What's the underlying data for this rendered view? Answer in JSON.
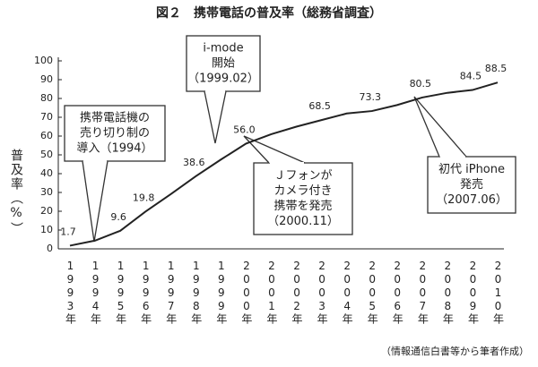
{
  "chart_data": {
    "type": "line",
    "title": "図２　携帯電話の普及率（総務省調査）",
    "y_label": "普及率（%）",
    "source": "（情報通信白書等から筆者作成）",
    "categories": [
      "1993年",
      "1994年",
      "1995年",
      "1996年",
      "1997年",
      "1998年",
      "1999年",
      "2000年",
      "2001年",
      "2002年",
      "2003年",
      "2004年",
      "2005年",
      "2006年",
      "2007年",
      "2008年",
      "2009年",
      "2010年"
    ],
    "series": [
      {
        "name": "普及率",
        "color": "#222222",
        "values": [
          1.7,
          4.4,
          9.6,
          19.8,
          29.0,
          38.6,
          47.5,
          56.0,
          61.0,
          65.0,
          68.5,
          72.0,
          73.3,
          76.5,
          80.5,
          83.0,
          84.5,
          88.5
        ],
        "value_labels": [
          "1.7",
          null,
          "9.6",
          "19.8",
          null,
          "38.6",
          null,
          "56.0",
          null,
          null,
          "68.5",
          null,
          "73.3",
          null,
          "80.5",
          null,
          "84.5",
          "88.5"
        ]
      }
    ],
    "ylim": [
      0,
      100
    ],
    "yticks": [
      0,
      10,
      20,
      30,
      40,
      50,
      60,
      70,
      80,
      90,
      100
    ],
    "grid": false,
    "annotations": [
      {
        "lines": [
          "携帯電話機の",
          "売り切り制の",
          "導入（1994）"
        ]
      },
      {
        "lines": [
          "i-mode",
          "開始",
          "（1999.02）"
        ]
      },
      {
        "lines": [
          "Ｊフォンが",
          "カメラ付き",
          "携帯を発売",
          "（2000.11）"
        ]
      },
      {
        "lines": [
          "初代 iPhone",
          "発売",
          "（2007.06）"
        ]
      }
    ]
  }
}
